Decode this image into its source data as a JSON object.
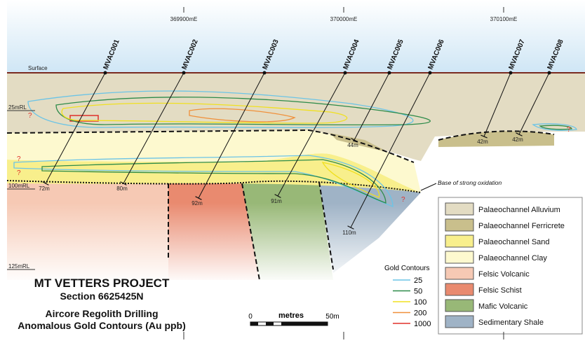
{
  "eastings": [
    "369900mE",
    "370000mE",
    "370100mE"
  ],
  "surface_label": "Surface",
  "rl_labels": [
    "25mRL",
    "100mRL",
    "125mRL"
  ],
  "drill_holes": [
    {
      "id": "MVAC001",
      "depth": "72m"
    },
    {
      "id": "MVAC002",
      "depth": "80m"
    },
    {
      "id": "MVAC003",
      "depth": "92m"
    },
    {
      "id": "MVAC004",
      "depth": "91m"
    },
    {
      "id": "MVAC005",
      "depth": "44m"
    },
    {
      "id": "MVAC006",
      "depth": "110m"
    },
    {
      "id": "MVAC007",
      "depth": "42m"
    },
    {
      "id": "MVAC008",
      "depth": "42m"
    }
  ],
  "oxidation_label": "Base of strong oxidation",
  "question_marks": [
    "?",
    "?",
    "?",
    "?",
    "?"
  ],
  "title_block": {
    "project": "MT VETTERS PROJECT",
    "section": "Section 6625425N",
    "line1": "Aircore Regolith Drilling",
    "line2": "Anomalous Gold Contours (Au ppb)"
  },
  "scale_bar": {
    "start": "0",
    "unit": "metres",
    "end": "50m"
  },
  "gold_contours": {
    "title": "Gold Contours",
    "items": [
      {
        "label": "25",
        "color": "#6cc4e6"
      },
      {
        "label": "50",
        "color": "#2e8b4a"
      },
      {
        "label": "100",
        "color": "#f0e020"
      },
      {
        "label": "200",
        "color": "#f0903a"
      },
      {
        "label": "1000",
        "color": "#e0302a"
      }
    ]
  },
  "lithology_legend": [
    {
      "label": "Palaeochannel Alluvium",
      "color": "#e3dcc3"
    },
    {
      "label": "Palaeochannel Ferricrete",
      "color": "#c9bf8c"
    },
    {
      "label": "Palaeochannel Sand",
      "color": "#f8ef8c"
    },
    {
      "label": "Palaeochannel Clay",
      "color": "#fdf9cf"
    },
    {
      "label": "Felsic Volcanic",
      "color": "#f6c9b4"
    },
    {
      "label": "Felsic Schist",
      "color": "#e98a6f"
    },
    {
      "label": "Mafic Volcanic",
      "color": "#98b877"
    },
    {
      "label": "Sedimentary Shale",
      "color": "#9fb3c6"
    }
  ]
}
